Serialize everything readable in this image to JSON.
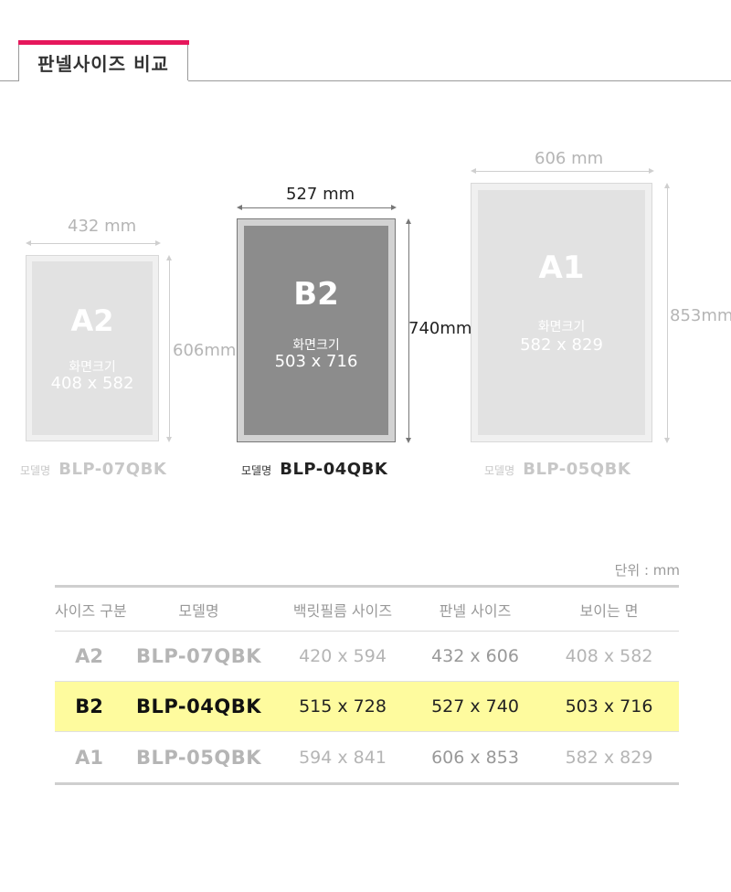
{
  "header": {
    "title": "판넬사이즈 비교"
  },
  "panels": {
    "a2": {
      "size": "A2",
      "screen_label": "화면크기",
      "screen_size": "408 x 582",
      "width": "432 mm",
      "height": "606mm",
      "model_prefix": "모델명",
      "model": "BLP-07QBK"
    },
    "b2": {
      "size": "B2",
      "screen_label": "화면크기",
      "screen_size": "503 x 716",
      "width": "527 mm",
      "height": "740mm",
      "model_prefix": "모델명",
      "model": "BLP-04QBK"
    },
    "a1": {
      "size": "A1",
      "screen_label": "화면크기",
      "screen_size": "582 x 829",
      "width": "606 mm",
      "height": "853mm",
      "model_prefix": "모델명",
      "model": "BLP-05QBK"
    }
  },
  "table": {
    "unit": "단위 : mm",
    "headers": [
      "사이즈 구분",
      "모델명",
      "백릿필름 사이즈",
      "판넬 사이즈",
      "보이는 면"
    ],
    "rows": [
      {
        "size": "A2",
        "model": "BLP-07QBK",
        "film": "420 x 594",
        "panel": "432 x 606",
        "visible": "408 x 582"
      },
      {
        "size": "B2",
        "model": "BLP-04QBK",
        "film": "515 x 728",
        "panel": "527 x 740",
        "visible": "503 x 716",
        "highlight": true
      },
      {
        "size": "A1",
        "model": "BLP-05QBK",
        "film": "594 x 841",
        "panel": "606 x 853",
        "visible": "582 x 829"
      }
    ]
  },
  "colors": {
    "accent": "#e6175c",
    "highlight_row": "#fefb9e",
    "dark_panel": "#8c8c8c",
    "light_panel": "#e2e2e2"
  }
}
